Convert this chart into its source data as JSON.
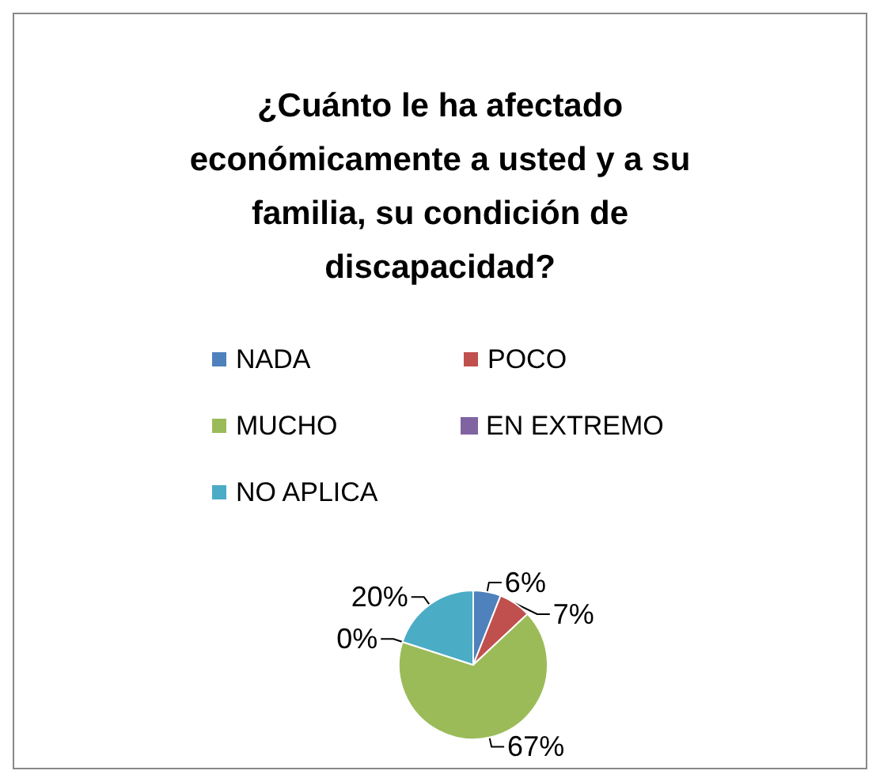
{
  "chart_data": {
    "type": "pie",
    "title": "¿Cuánto le ha afectado económicamente a usted y a su familia, su condición de discapacidad?",
    "categories": [
      "NADA",
      "POCO",
      "MUCHO",
      "EN EXTREMO",
      "NO APLICA"
    ],
    "values": [
      6,
      7,
      67,
      0,
      20
    ],
    "value_labels": [
      "6%",
      "7%",
      "67%",
      "0%",
      "20%"
    ],
    "colors": [
      "#4f81bd",
      "#c0504d",
      "#9bbb59",
      "#8064a2",
      "#4bacc6"
    ],
    "legend": "top"
  }
}
